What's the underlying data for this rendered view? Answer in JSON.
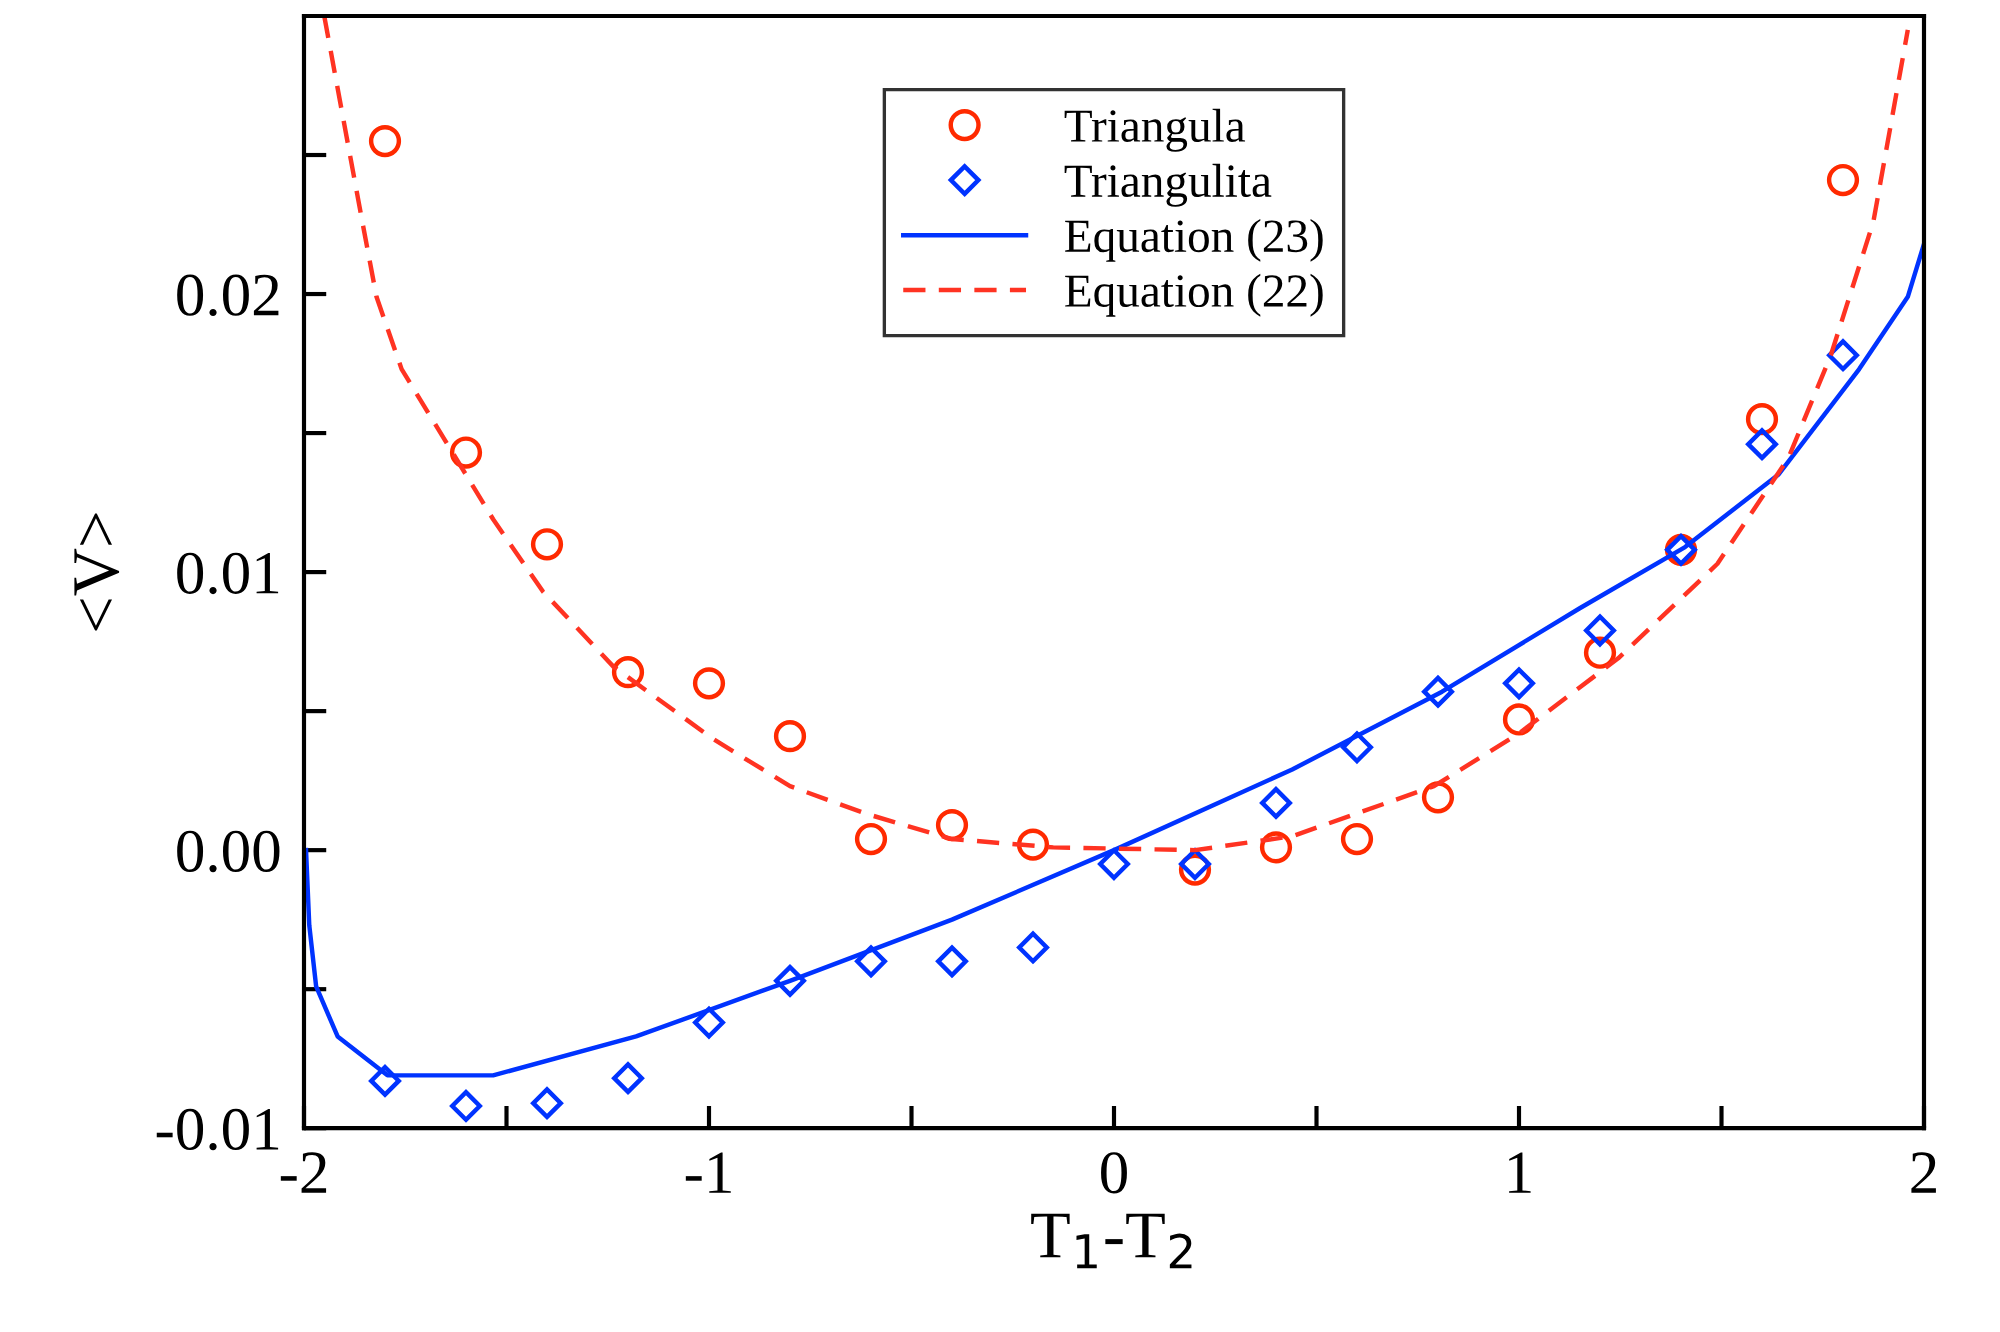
{
  "chart_data": {
    "type": "scatter",
    "xlabel": "T$_{1}$-T$_{2}$",
    "ylabel": "<V>",
    "xlim": [
      -2,
      2
    ],
    "ylim": [
      -0.01,
      0.03
    ],
    "xticks": [
      -2,
      {
        "value": -1.5,
        "label": null
      },
      -1,
      {
        "value": -0.5,
        "label": null
      },
      0,
      {
        "value": 0.5,
        "label": null
      },
      1,
      {
        "value": 1.5,
        "label": null
      },
      2
    ],
    "yticks": [
      -0.01,
      {
        "value": -0.005,
        "label": null
      },
      {
        "value": 0.0,
        "label": "0.00"
      },
      {
        "value": 0.005,
        "label": null
      },
      0.01,
      {
        "value": 0.015,
        "label": null
      },
      0.02,
      {
        "value": 0.025,
        "label": null
      }
    ],
    "grid": false,
    "legend": "top",
    "series": [
      {
        "name": "Triangula",
        "marker": "circle",
        "color": "#ff2a00",
        "x": [
          -1.8,
          -1.6,
          -1.4,
          -1.2,
          -1.0,
          -0.8,
          -0.6,
          -0.4,
          -0.2,
          0.2,
          0.4,
          0.6,
          0.8,
          1.0,
          1.2,
          1.4,
          1.6,
          1.8
        ],
        "values": [
          0.0255,
          0.0143,
          0.011,
          0.0064,
          0.006,
          0.0041,
          0.0004,
          0.0009,
          0.0002,
          -0.0007,
          0.0001,
          0.0004,
          0.0019,
          0.0047,
          0.0071,
          0.0108,
          0.0155,
          0.0241
        ]
      },
      {
        "name": "Triangulita",
        "marker": "diamond",
        "color": "#0033ff",
        "x": [
          -1.8,
          -1.6,
          -1.4,
          -1.2,
          -1.0,
          -0.8,
          -0.6,
          -0.4,
          -0.2,
          0.0,
          0.2,
          0.4,
          0.6,
          0.8,
          1.0,
          1.2,
          1.4,
          1.6,
          1.8
        ],
        "values": [
          -0.0083,
          -0.0092,
          -0.0091,
          -0.0082,
          -0.0062,
          -0.0047,
          -0.004,
          -0.004,
          -0.0035,
          -0.0005,
          -0.0005,
          0.0017,
          0.0037,
          0.0057,
          0.006,
          0.0079,
          0.0108,
          0.0146,
          0.0178
        ]
      },
      {
        "name": "Equation (23)",
        "type": "line",
        "line_style": "solid",
        "color": "#0033ff",
        "x": [
          -1.995,
          -1.987,
          -1.97,
          -1.917,
          -1.794,
          -1.533,
          -1.18,
          -0.8,
          -0.4,
          0.0,
          0.44,
          0.81,
          1.15,
          1.41,
          1.64,
          1.84,
          1.96,
          2.0
        ],
        "values": [
          0.0,
          -0.0027,
          -0.0049,
          -0.0067,
          -0.0081,
          -0.0081,
          -0.0067,
          -0.0047,
          -0.0025,
          0.0,
          0.0029,
          0.0057,
          0.0087,
          0.0109,
          0.0135,
          0.0173,
          0.0199,
          0.0218
        ]
      },
      {
        "name": "Equation (22)",
        "type": "line",
        "line_style": "dashed",
        "color": "#ff3322",
        "x": [
          -1.95,
          -1.856,
          -1.821,
          -1.759,
          -1.646,
          -1.533,
          -1.41,
          -1.236,
          -0.99,
          -0.8,
          -0.61,
          -0.4,
          -0.15,
          0.2,
          0.44,
          0.79,
          1.0,
          1.245,
          1.49,
          1.665,
          1.77,
          1.875,
          1.96
        ],
        "values": [
          0.03,
          0.0226,
          0.0199,
          0.0173,
          0.0146,
          0.0119,
          0.0093,
          0.0066,
          0.004,
          0.0023,
          0.0013,
          0.0004,
          0.0001,
          0.0,
          0.0005,
          0.0023,
          0.0042,
          0.0069,
          0.0103,
          0.0141,
          0.0178,
          0.0226,
          0.0295
        ]
      }
    ]
  }
}
